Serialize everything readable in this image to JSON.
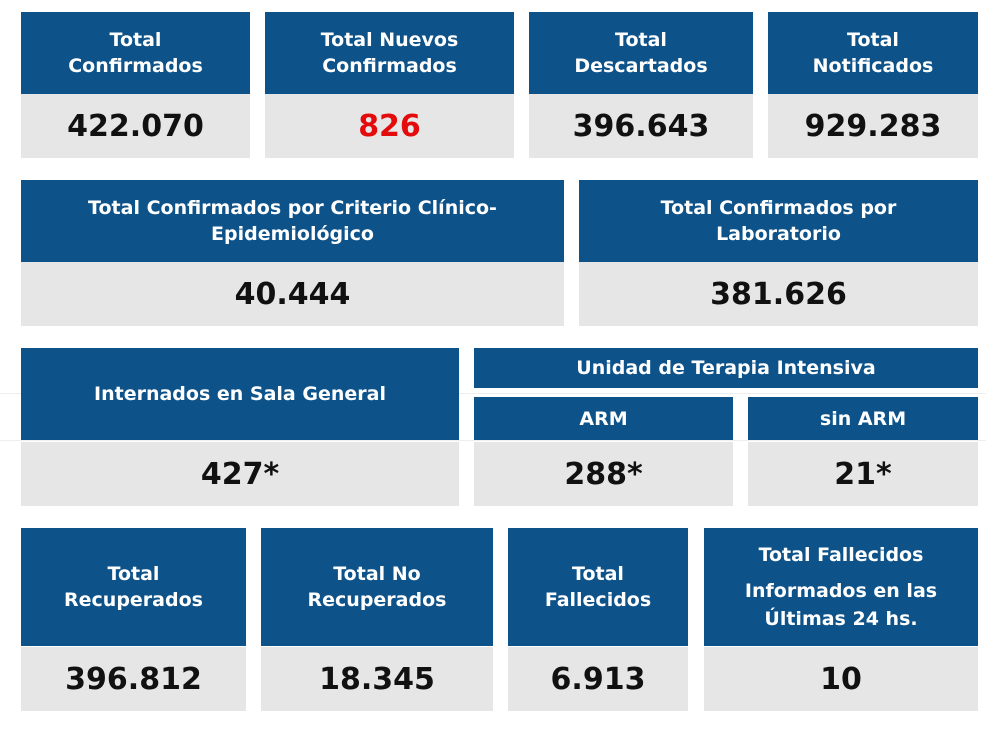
{
  "row1": [
    {
      "title": [
        "Total",
        "Confirmados"
      ],
      "value": "422.070"
    },
    {
      "title": [
        "Total Nuevos",
        "Confirmados"
      ],
      "value": "826"
    },
    {
      "title": [
        "Total",
        "Descartados"
      ],
      "value": "396.643"
    },
    {
      "title": [
        "Total",
        "Notificados"
      ],
      "value": "929.283"
    }
  ],
  "row2": [
    {
      "title": [
        "Total Confirmados por Criterio Clínico-",
        "Epidemiológico"
      ],
      "value": "40.444"
    },
    {
      "title": [
        "Total Confirmados por",
        "Laboratorio"
      ],
      "value": "381.626"
    }
  ],
  "row3": {
    "sala": {
      "title": "Internados en Sala General",
      "value": "427*"
    },
    "uti_title": "Unidad de Terapia Intensiva",
    "arm": {
      "title": "ARM",
      "value": "288*"
    },
    "sin_arm": {
      "title": "sin ARM",
      "value": "21*"
    }
  },
  "row4": [
    {
      "title": [
        "Total",
        "Recuperados"
      ],
      "value": "396.812"
    },
    {
      "title": [
        "Total No",
        "Recuperados"
      ],
      "value": "18.345"
    },
    {
      "title": [
        "Total",
        "Fallecidos"
      ],
      "value": "6.913"
    },
    {
      "title": [
        "Total Fallecidos",
        "Informados en las",
        "Últimas 24 hs."
      ],
      "value": "10"
    }
  ],
  "colors": {
    "header": "#0d5289",
    "value_bg": "#e6e6e6",
    "highlight": "#e30b0b"
  }
}
